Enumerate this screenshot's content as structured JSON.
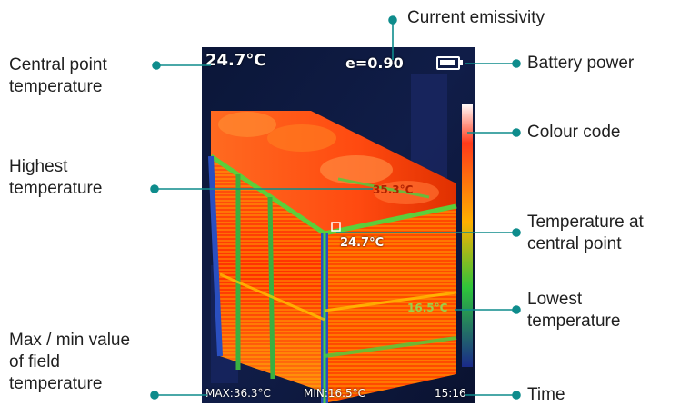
{
  "screen": {
    "center_temp": "24.7°C",
    "emissivity": "e=0.90",
    "marker_temp": "24.7°C",
    "hot_label": "35.3°C",
    "cold_label": "16.5°C",
    "max_temp": "MAX:36.3°C",
    "min_temp": "MIN:16.5°C",
    "time": "15:16"
  },
  "labels": {
    "current_emissivity": "Current emissivity",
    "central_point_temperature": [
      "Central point",
      "temperature"
    ],
    "battery_power": "Battery power",
    "colour_code": "Colour code",
    "highest_temperature": [
      "Highest",
      "temperature"
    ],
    "temperature_at_central_point": [
      "Temperature at",
      "central point"
    ],
    "lowest_temperature": [
      "Lowest",
      "temperature"
    ],
    "max_min_field_temperature": [
      "Max / min value",
      "of field",
      "temperature"
    ],
    "time": "Time"
  },
  "colors": {
    "leader": "#0e8c8c"
  }
}
